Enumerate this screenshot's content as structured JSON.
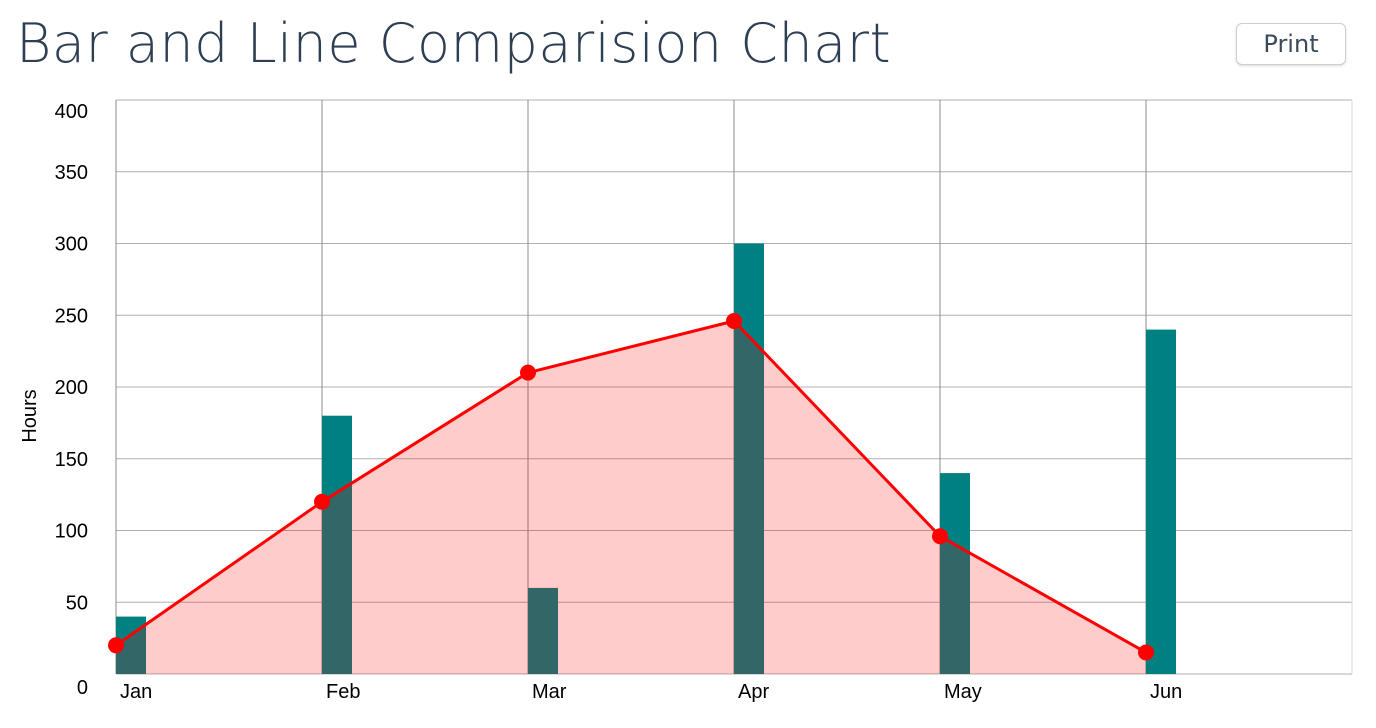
{
  "page": {
    "title": "Bar and Line Comparision Chart",
    "print_label": "Print"
  },
  "colors": {
    "bar": "#008080",
    "line": "#ff0000",
    "area": "#ffcccc",
    "grid": "#b0b0b0",
    "title": "#2e3f54"
  },
  "chart_data": {
    "type": "bar",
    "title": "Bar and Line Comparision Chart",
    "xlabel": "",
    "ylabel": "Hours",
    "categories": [
      "Jan",
      "Feb",
      "Mar",
      "Apr",
      "May",
      "Jun"
    ],
    "ylim": [
      0,
      400
    ],
    "yticks": [
      0,
      50,
      100,
      150,
      200,
      250,
      300,
      350,
      400
    ],
    "grid": true,
    "series": [
      {
        "type": "bar",
        "values": [
          40,
          180,
          60,
          300,
          140,
          240
        ]
      },
      {
        "type": "area-line",
        "values": [
          20,
          120,
          210,
          246,
          96,
          15
        ]
      }
    ]
  }
}
